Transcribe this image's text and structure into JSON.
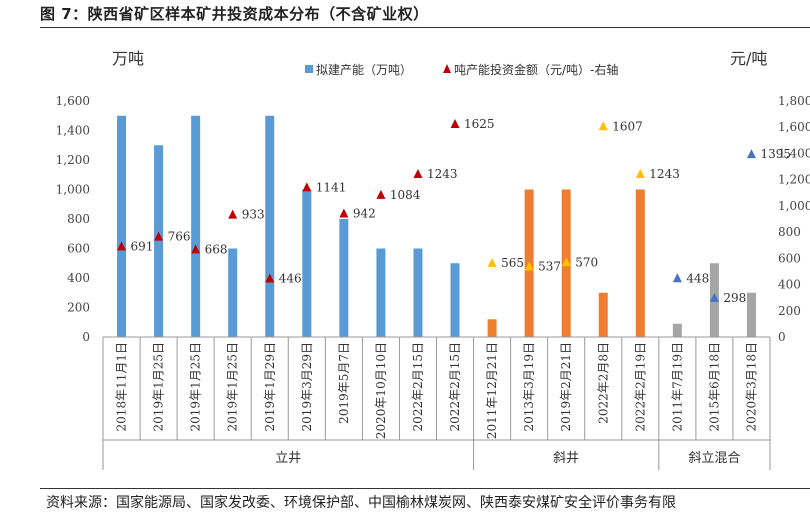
{
  "figure": {
    "title": "图 7：陕西省矿区样本矿井投资成本分布（不含矿业权）",
    "source_note": "资料来源：国家能源局、国家发改委、环境保护部、中国榆林煤炭网、陕西泰安煤矿安全评价事务有限"
  },
  "chart_data": {
    "type": "bar",
    "left_axis_unit": "万吨",
    "right_axis_unit": "元/吨",
    "y_left": {
      "ylim": [
        0,
        1600
      ],
      "ticks": [
        "0",
        "200",
        "400",
        "600",
        "800",
        "1,000",
        "1,200",
        "1,400",
        "1,600"
      ]
    },
    "y_right": {
      "ylim": [
        0,
        1800
      ],
      "ticks": [
        "0",
        "200",
        "400",
        "600",
        "800",
        "1,000",
        "1,200",
        "1,400",
        "1,600",
        "1,800"
      ]
    },
    "legend": {
      "position": "top",
      "bar_label": "拟建产能（万吨）",
      "marker_label": "吨产能投资金额（元/吨）-右轴"
    },
    "categories": [
      "2018年11月1日",
      "2019年1月25日",
      "2019年1月25日",
      "2019年1月25日",
      "2019年1月29日",
      "2019年3月29日",
      "2019年5月7日",
      "2020年10月10日",
      "2022年2月15日",
      "2022年2月15日",
      "2011年12月21日",
      "2013年3月19日",
      "2019年2月21日",
      "2022年2月8日",
      "2022年2月19日",
      "2011年7月19日",
      "2015年6月18日",
      "2020年3月18日"
    ],
    "groups": [
      {
        "label": "立井",
        "start": 0,
        "end": 9,
        "color": "#5b9bd5"
      },
      {
        "label": "斜井",
        "start": 10,
        "end": 14,
        "color": "#ed7d31"
      },
      {
        "label": "斜立混合",
        "start": 15,
        "end": 17,
        "color": "#a5a5a5"
      }
    ],
    "series": [
      {
        "name": "拟建产能（万吨）",
        "axis": "left",
        "values": [
          1500,
          1300,
          1500,
          600,
          1500,
          1000,
          800,
          600,
          600,
          500,
          120,
          1000,
          1000,
          300,
          1000,
          90,
          500,
          300
        ]
      },
      {
        "name": "吨产能投资金额（元/吨）-右轴",
        "axis": "right",
        "values": [
          691,
          766,
          668,
          933,
          446,
          1141,
          942,
          1084,
          1243,
          1625,
          565,
          537,
          570,
          1607,
          1243,
          448,
          298,
          1395
        ],
        "labels": [
          "691",
          "766",
          "668",
          "933",
          "446",
          "1141",
          "942",
          "1084",
          "1243",
          "1625",
          "565",
          "537",
          "570",
          "1607",
          "1243",
          "448",
          "298",
          "1395"
        ]
      }
    ],
    "marker_colors": {
      "立井": "#c00000",
      "斜井": "#ffc000",
      "斜立混合": "#4472c4"
    },
    "grid": false
  }
}
